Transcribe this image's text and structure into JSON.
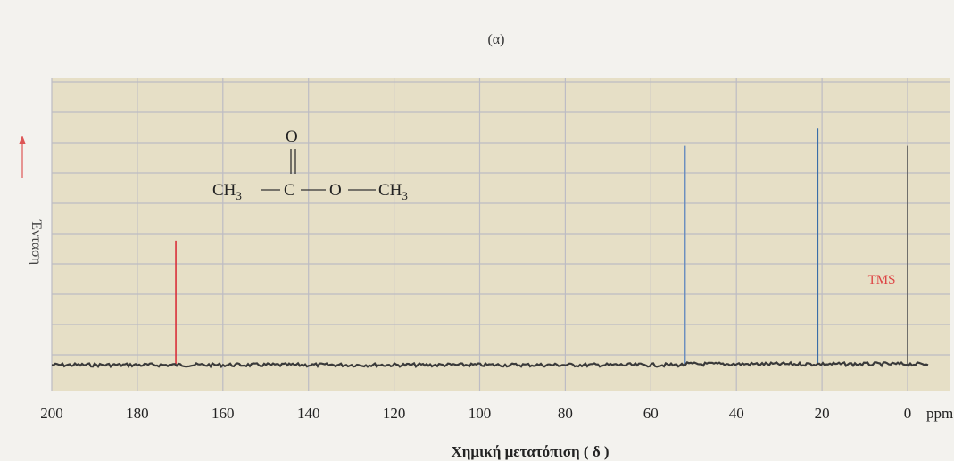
{
  "chart_data": {
    "type": "line",
    "title": "(α)",
    "xlabel": "Χημική μετατόπιση ( δ )",
    "ylabel": "Ένταση",
    "x_unit": "ppm",
    "xlim": [
      200,
      -5
    ],
    "ylim": [
      0,
      100
    ],
    "x_ticks": [
      200,
      180,
      160,
      140,
      120,
      100,
      80,
      60,
      40,
      20,
      0
    ],
    "grid": true,
    "baseline": 3,
    "peaks": [
      {
        "x": 171,
        "height": 46,
        "color": "#d9303a"
      },
      {
        "x": 52,
        "height": 79,
        "color": "#6c8fbf"
      },
      {
        "x": 21,
        "height": 85,
        "color": "#3a6ea8"
      },
      {
        "x": 0,
        "height": 79,
        "color": "#555555"
      }
    ],
    "annotations": [
      {
        "text": "TMS",
        "x": 0,
        "color": "#d44444"
      }
    ],
    "molecule": {
      "top_atom": "O",
      "groups": [
        "CH",
        "3",
        "C",
        "O",
        "CH",
        "3"
      ]
    },
    "colors": {
      "plot_bg": "#e6dfc6",
      "grid": "#bdbcc4",
      "spectrum": "#3a3a3a",
      "methyl_carbon": "#6f8fcf",
      "carbonyl_carbon": "#d9544a"
    }
  }
}
